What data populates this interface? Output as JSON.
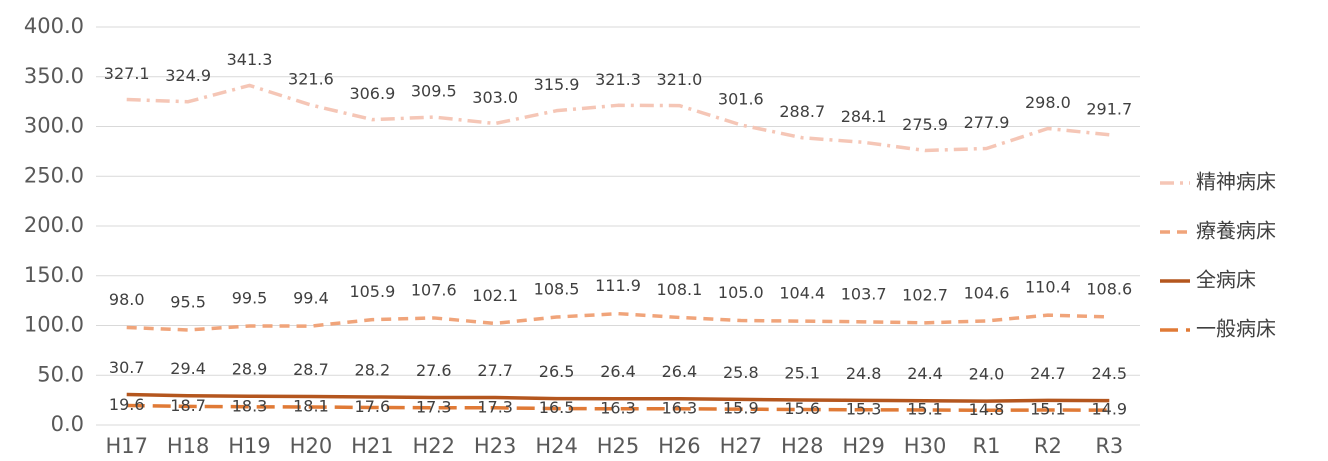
{
  "chart_data": {
    "type": "line",
    "categories": [
      "H17",
      "H18",
      "H19",
      "H20",
      "H21",
      "H22",
      "H23",
      "H24",
      "H25",
      "H26",
      "H27",
      "H28",
      "H29",
      "H30",
      "R1",
      "R2",
      "R3"
    ],
    "ylim": [
      0,
      400
    ],
    "yticks": [
      {
        "value": 0,
        "label": "0.0"
      },
      {
        "value": 50,
        "label": "50.0"
      },
      {
        "value": 100,
        "label": "100.0"
      },
      {
        "value": 150,
        "label": "150.0"
      },
      {
        "value": 200,
        "label": "200.0"
      },
      {
        "value": 250,
        "label": "250.0"
      },
      {
        "value": 300,
        "label": "300.0"
      },
      {
        "value": 350,
        "label": "350.0"
      },
      {
        "value": 400,
        "label": "400.0"
      }
    ],
    "grid": true,
    "legend": "right",
    "series": [
      {
        "name": "精神病床",
        "color": "#f5c6b6",
        "dash": "dashdot",
        "values": [
          327.1,
          324.9,
          341.3,
          321.6,
          306.9,
          309.5,
          303.0,
          315.9,
          321.3,
          321.0,
          301.6,
          288.7,
          284.1,
          275.9,
          277.9,
          298.0,
          291.7
        ],
        "value_labels": [
          "327.1",
          "324.9",
          "341.3",
          "321.6",
          "306.9",
          "309.5",
          "303.0",
          "315.9",
          "321.3",
          "321.0",
          "301.6",
          "288.7",
          "284.1",
          "275.9",
          "277.9",
          "298.0",
          "291.7"
        ]
      },
      {
        "name": "療養病床",
        "color": "#f0a47a",
        "dash": "dash",
        "values": [
          98.0,
          95.5,
          99.5,
          99.4,
          105.9,
          107.6,
          102.1,
          108.5,
          111.9,
          108.1,
          105.0,
          104.4,
          103.7,
          102.7,
          104.6,
          110.4,
          108.6
        ],
        "value_labels": [
          "98.0",
          "95.5",
          "99.5",
          "99.4",
          "105.9",
          "107.6",
          "102.1",
          "108.5",
          "111.9",
          "108.1",
          "105.0",
          "104.4",
          "103.7",
          "102.7",
          "104.6",
          "110.4",
          "108.6"
        ]
      },
      {
        "name": "全病床",
        "color": "#b4561e",
        "dash": "solid",
        "values": [
          30.7,
          29.4,
          28.9,
          28.7,
          28.2,
          27.6,
          27.7,
          26.5,
          26.4,
          26.4,
          25.8,
          25.1,
          24.8,
          24.4,
          24.0,
          24.7,
          24.5
        ],
        "value_labels": [
          "30.7",
          "29.4",
          "28.9",
          "28.7",
          "28.2",
          "27.6",
          "27.7",
          "26.5",
          "26.4",
          "26.4",
          "25.8",
          "25.1",
          "24.8",
          "24.4",
          "24.0",
          "24.7",
          "24.5"
        ]
      },
      {
        "name": "一般病床",
        "color": "#e07a36",
        "dash": "longdash",
        "values": [
          19.6,
          18.7,
          18.3,
          18.1,
          17.6,
          17.3,
          17.3,
          16.5,
          16.3,
          16.3,
          15.9,
          15.6,
          15.3,
          15.1,
          14.8,
          15.1,
          14.9
        ],
        "value_labels": [
          "19.6",
          "18.7",
          "18.3",
          "18.1",
          "17.6",
          "17.3",
          "17.3",
          "16.5",
          "16.3",
          "16.3",
          "15.9",
          "15.6",
          "15.3",
          "15.1",
          "14.8",
          "15.1",
          "14.9"
        ]
      }
    ]
  }
}
